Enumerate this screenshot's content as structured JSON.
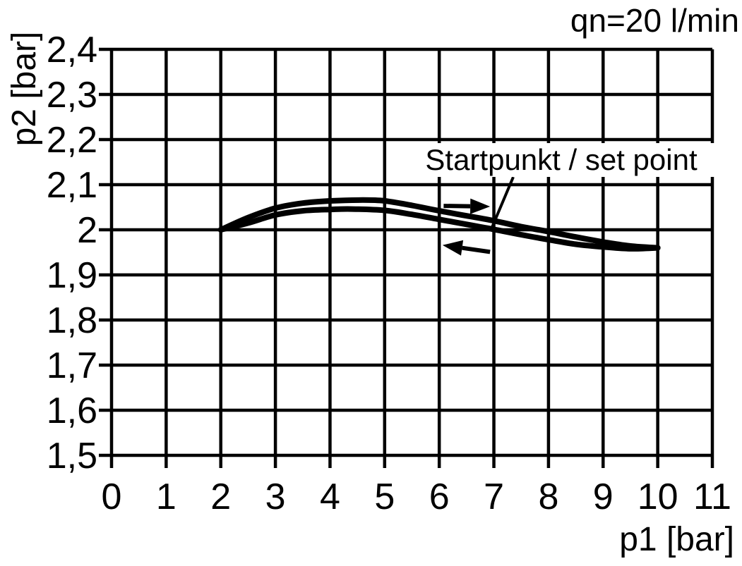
{
  "colors": {
    "foreground": "#000000",
    "background": "#ffffff"
  },
  "chart_data": {
    "type": "line",
    "title": "qn=20 l/min",
    "flow_annotation": "qn=20 l/min",
    "xlabel": "p1 [bar]",
    "ylabel": "p2 [bar]",
    "xlim": [
      0,
      11
    ],
    "ylim": [
      1.5,
      2.4
    ],
    "grid": true,
    "x_ticks": [
      0,
      1,
      2,
      3,
      4,
      5,
      6,
      7,
      8,
      9,
      10,
      11
    ],
    "x_tick_labels": [
      "0",
      "1",
      "2",
      "3",
      "4",
      "5",
      "6",
      "7",
      "8",
      "9",
      "10",
      "11"
    ],
    "y_ticks": [
      2.4,
      2.3,
      2.2,
      2.1,
      2.0,
      1.9,
      1.8,
      1.7,
      1.6,
      1.5
    ],
    "y_tick_labels": [
      "2,4",
      "2,3",
      "2,2",
      "2,1",
      "2",
      "1,9",
      "1,8",
      "1,7",
      "1,6",
      "1,5"
    ],
    "series": [
      {
        "name": "upper-branch-increasing-p1",
        "direction": "right",
        "points": [
          [
            2,
            2.0
          ],
          [
            2.5,
            2.027
          ],
          [
            3,
            2.048
          ],
          [
            3.5,
            2.059
          ],
          [
            4,
            2.064
          ],
          [
            4.6,
            2.066
          ],
          [
            5,
            2.064
          ],
          [
            5.5,
            2.054
          ],
          [
            6,
            2.042
          ],
          [
            6.5,
            2.031
          ],
          [
            7,
            2.02
          ],
          [
            7.5,
            2.007
          ],
          [
            8,
            1.996
          ],
          [
            8.5,
            1.984
          ],
          [
            9,
            1.973
          ],
          [
            9.5,
            1.964
          ],
          [
            10,
            1.96
          ]
        ]
      },
      {
        "name": "lower-branch-decreasing-p1",
        "direction": "left",
        "points": [
          [
            2,
            2.0
          ],
          [
            2.5,
            2.015
          ],
          [
            3,
            2.033
          ],
          [
            3.5,
            2.042
          ],
          [
            4,
            2.045
          ],
          [
            4.4,
            2.046
          ],
          [
            5,
            2.043
          ],
          [
            5.5,
            2.034
          ],
          [
            6,
            2.023
          ],
          [
            6.5,
            2.012
          ],
          [
            7,
            2.001
          ],
          [
            7.5,
            1.989
          ],
          [
            8,
            1.978
          ],
          [
            8.5,
            1.968
          ],
          [
            9,
            1.962
          ],
          [
            9.5,
            1.958
          ],
          [
            10,
            1.96
          ]
        ]
      }
    ],
    "annotations": {
      "setpoint": {
        "text": "Startpunkt / set point",
        "leader_from": [
          7.355,
          2.117
        ],
        "leader_to": [
          6.968,
          2.006
        ],
        "points_to": {
          "p1": 7,
          "p2": 2.0
        }
      },
      "arrows": [
        {
          "name": "direction-arrow-right",
          "direction": "right",
          "from": [
            6.08,
            2.053
          ],
          "to": [
            6.93,
            2.0515
          ]
        },
        {
          "name": "direction-arrow-left",
          "direction": "left",
          "from": [
            6.93,
            1.951
          ],
          "to": [
            6.06,
            1.966
          ]
        }
      ]
    }
  }
}
